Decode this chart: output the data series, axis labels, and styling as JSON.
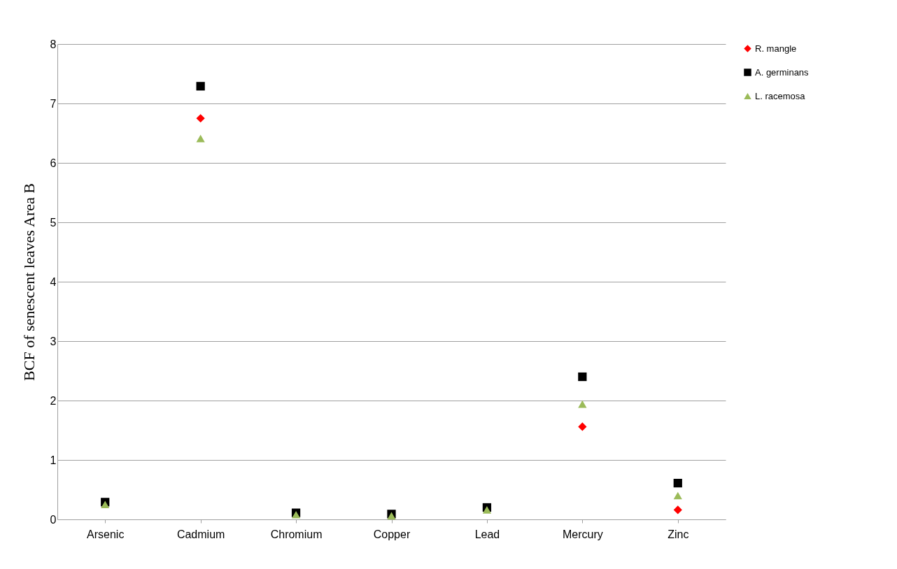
{
  "chart_data": {
    "type": "scatter",
    "ylabel": "BCF of senescent leaves Area B",
    "categories": [
      "Arsenic",
      "Cadmium",
      "Chromium",
      "Copper",
      "Lead",
      "Mercury",
      "Zinc"
    ],
    "series": [
      {
        "name": "R. mangle",
        "color": "#ff0000",
        "marker": "diamond",
        "values": [
          null,
          6.75,
          null,
          null,
          null,
          1.56,
          0.16
        ]
      },
      {
        "name": "A. germinans",
        "color": "#000000",
        "marker": "square",
        "values": [
          0.29,
          7.29,
          0.11,
          0.09,
          0.2,
          2.4,
          0.61
        ]
      },
      {
        "name": "L. racemosa",
        "color": "#9bbb59",
        "marker": "triangle",
        "values": [
          0.25,
          6.41,
          0.08,
          0.06,
          0.16,
          1.94,
          0.4
        ]
      }
    ],
    "ylim": [
      0,
      8
    ],
    "yticks": [
      0,
      1,
      2,
      3,
      4,
      5,
      6,
      7,
      8
    ],
    "grid": "y",
    "legend": "right"
  }
}
